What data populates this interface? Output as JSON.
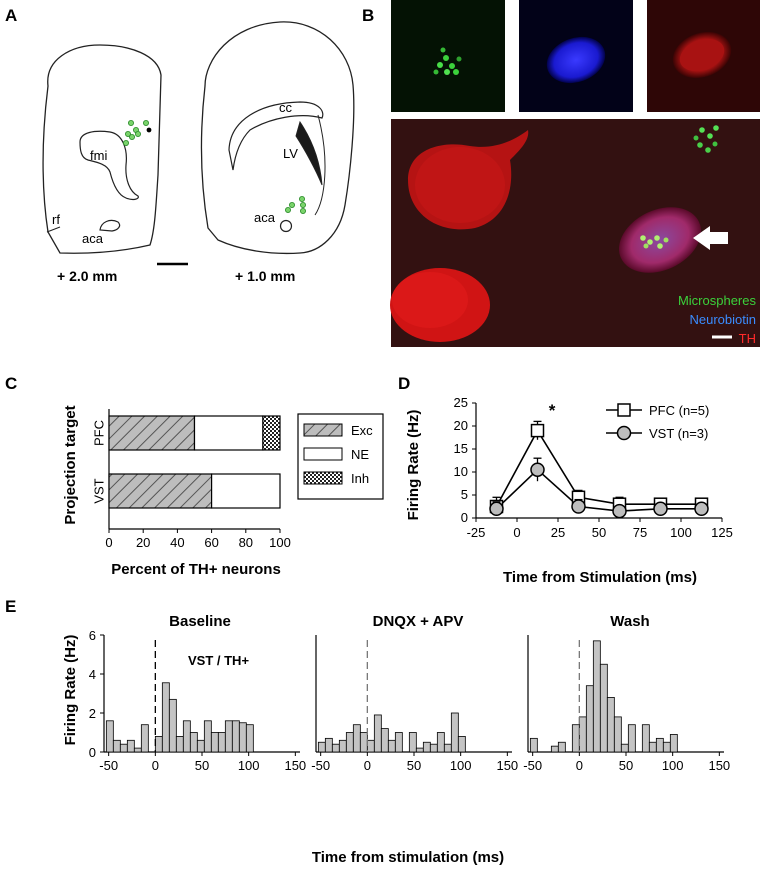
{
  "panels": {
    "a": {
      "letter": "A",
      "section1_label": "+ 2.0 mm",
      "section2_label": "+ 1.0 mm",
      "labels": {
        "fmi": "fmi",
        "rf": "rf",
        "aca1": "aca",
        "aca2": "aca",
        "cc": "cc",
        "lv": "LV"
      }
    },
    "b": {
      "letter": "B",
      "legend": [
        "Microspheres",
        "Neurobiotin",
        "TH"
      ],
      "legend_colors": [
        "#3bd13b",
        "#3a8cff",
        "#ff2a2a"
      ]
    },
    "c": {
      "letter": "C"
    },
    "d": {
      "letter": "D",
      "sig": "*"
    },
    "e": {
      "letter": "E",
      "annotation": "VST / TH+"
    }
  },
  "chart_data": [
    {
      "id": "C",
      "type": "bar",
      "orientation": "horizontal",
      "stacked": true,
      "categories": [
        "PFC",
        "VST"
      ],
      "series": [
        {
          "name": "Exc",
          "values": [
            50,
            60
          ],
          "pattern": "hatched"
        },
        {
          "name": "NE",
          "values": [
            40,
            40
          ],
          "pattern": "white"
        },
        {
          "name": "Inh",
          "values": [
            10,
            0
          ],
          "pattern": "crosshatch"
        }
      ],
      "xlabel": "Percent of TH+ neurons",
      "ylabel": "Projection target",
      "xlim": [
        0,
        100
      ],
      "xticks": [
        "0",
        "20",
        "40",
        "60",
        "80",
        "100"
      ],
      "legend": [
        "Exc",
        "NE",
        "Inh"
      ],
      "legend_position": "right"
    },
    {
      "id": "D",
      "type": "line",
      "x": [
        -12.5,
        12.5,
        37.5,
        62.5,
        87.5,
        112.5
      ],
      "series": [
        {
          "name": "PFC (n=5)",
          "marker": "square",
          "values": [
            2.5,
            19,
            4.5,
            3,
            3,
            3
          ],
          "err": [
            2,
            2,
            1.5,
            1.5,
            1.3,
            1.3
          ]
        },
        {
          "name": "VST (n=3)",
          "marker": "circle",
          "values": [
            2,
            10.5,
            2.5,
            1.5,
            2,
            2
          ],
          "err": [
            1.5,
            2.5,
            1.5,
            1,
            1,
            1
          ]
        }
      ],
      "xlabel": "Time from Stimulation (ms)",
      "ylabel": "Firing Rate (Hz)",
      "xlim": [
        -25,
        125
      ],
      "ylim": [
        0,
        25
      ],
      "xticks": [
        "-25",
        "0",
        "25",
        "50",
        "75",
        "100",
        "125"
      ],
      "yticks": [
        "0",
        "5",
        "10",
        "15",
        "20",
        "25"
      ],
      "legend_position": "top-right"
    },
    {
      "id": "E",
      "type": "bar",
      "subtype": "histogram",
      "xlabel": "Time from stimulation (ms)",
      "ylabel": "Firing Rate (Hz)",
      "xlim": [
        -55,
        155
      ],
      "ylim": [
        0,
        6
      ],
      "xticks": [
        "-50",
        "0",
        "50",
        "100",
        "150"
      ],
      "yticks": [
        "0",
        "2",
        "4",
        "6"
      ],
      "bin_width": 7.5,
      "bin_start": -52.5,
      "panels": [
        {
          "title": "Baseline",
          "values": [
            1.6,
            0.6,
            0.4,
            0.6,
            0.2,
            1.4,
            0,
            0.8,
            3.55,
            2.7,
            0.8,
            1.6,
            1.0,
            0.6,
            1.6,
            1.0,
            1.0,
            1.6,
            1.6,
            1.5,
            1.4
          ]
        },
        {
          "title": "DNQX + APV",
          "values": [
            0.5,
            0.7,
            0.4,
            0.6,
            1.0,
            1.4,
            1.0,
            0.6,
            1.9,
            1.2,
            0.6,
            1.0,
            0,
            1.0,
            0.2,
            0.5,
            0.4,
            1.0,
            0.4,
            2.0,
            0.8
          ]
        },
        {
          "title": "Wash",
          "values": [
            0.7,
            0,
            0,
            0.3,
            0.5,
            0,
            1.4,
            1.8,
            3.4,
            5.7,
            4.5,
            2.8,
            1.8,
            0.4,
            1.4,
            0,
            1.4,
            0.5,
            0.7,
            0.5,
            0.9
          ]
        }
      ]
    }
  ]
}
